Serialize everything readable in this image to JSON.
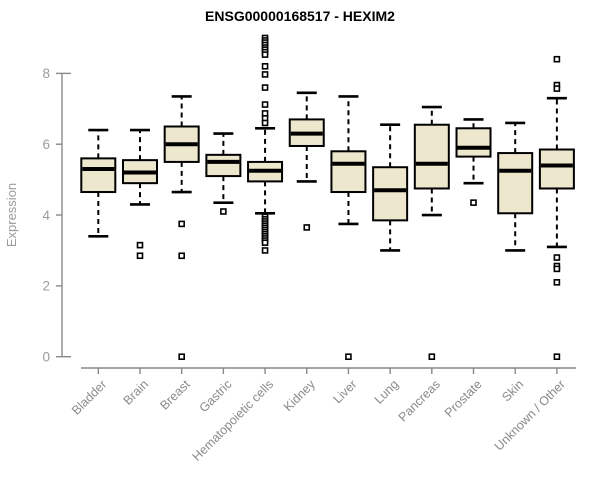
{
  "chart_data": {
    "type": "boxplot",
    "title": "ENSG00000168517 - HEXIM2",
    "xlabel": "",
    "ylabel": "Expression",
    "yticks": [
      0,
      2,
      4,
      6,
      8
    ],
    "ylim": [
      0,
      9.1
    ],
    "grid": false,
    "legend": false,
    "categories": [
      "Bladder",
      "Brain",
      "Breast",
      "Gastric",
      "Hematopoietic cells",
      "Kidney",
      "Liver",
      "Lung",
      "Pancreas",
      "Prostate",
      "Skin",
      "Unknown / Other"
    ],
    "series": [
      {
        "name": "Bladder",
        "whisker_low": 3.4,
        "q1": 4.65,
        "median": 5.3,
        "q3": 5.6,
        "whisker_high": 6.4,
        "outliers": []
      },
      {
        "name": "Brain",
        "whisker_low": 4.3,
        "q1": 4.9,
        "median": 5.2,
        "q3": 5.55,
        "whisker_high": 6.4,
        "outliers": [
          3.15,
          2.85
        ]
      },
      {
        "name": "Breast",
        "whisker_low": 4.65,
        "q1": 5.5,
        "median": 6.0,
        "q3": 6.5,
        "whisker_high": 7.35,
        "outliers": [
          3.75,
          2.85,
          0
        ]
      },
      {
        "name": "Gastric",
        "whisker_low": 4.35,
        "q1": 5.1,
        "median": 5.5,
        "q3": 5.7,
        "whisker_high": 6.3,
        "outliers": [
          4.1
        ]
      },
      {
        "name": "Hematopoietic cells",
        "whisker_low": 4.05,
        "q1": 4.95,
        "median": 5.25,
        "q3": 5.5,
        "whisker_high": 6.45,
        "outliers": [
          9.0,
          8.93,
          8.87,
          8.8,
          8.73,
          8.67,
          8.6,
          8.53,
          8.2,
          7.97,
          7.6,
          7.12,
          6.87,
          6.73,
          6.6,
          3.95,
          3.88,
          3.82,
          3.76,
          3.7,
          3.64,
          3.58,
          3.52,
          3.46,
          3.4,
          3.34,
          3.28,
          3.22,
          3.0
        ]
      },
      {
        "name": "Kidney",
        "whisker_low": 4.95,
        "q1": 5.95,
        "median": 6.3,
        "q3": 6.7,
        "whisker_high": 7.45,
        "outliers": [
          3.65
        ]
      },
      {
        "name": "Liver",
        "whisker_low": 3.75,
        "q1": 4.65,
        "median": 5.45,
        "q3": 5.8,
        "whisker_high": 7.35,
        "outliers": [
          0
        ]
      },
      {
        "name": "Lung",
        "whisker_low": 3.0,
        "q1": 3.85,
        "median": 4.7,
        "q3": 5.35,
        "whisker_high": 6.55,
        "outliers": []
      },
      {
        "name": "Pancreas",
        "whisker_low": 4.0,
        "q1": 4.75,
        "median": 5.45,
        "q3": 6.55,
        "whisker_high": 7.05,
        "outliers": [
          0
        ]
      },
      {
        "name": "Prostate",
        "whisker_low": 4.9,
        "q1": 5.65,
        "median": 5.9,
        "q3": 6.45,
        "whisker_high": 6.7,
        "outliers": [
          4.35
        ]
      },
      {
        "name": "Skin",
        "whisker_low": 3.0,
        "q1": 4.05,
        "median": 5.25,
        "q3": 5.75,
        "whisker_high": 6.6,
        "outliers": []
      },
      {
        "name": "Unknown / Other",
        "whisker_low": 3.1,
        "q1": 4.75,
        "median": 5.4,
        "q3": 5.85,
        "whisker_high": 7.3,
        "outliers": [
          8.4,
          7.67,
          7.57,
          2.8,
          2.56,
          2.48,
          2.1,
          0
        ]
      }
    ],
    "colors": {
      "box_fill": "#EDE7CE",
      "box_stroke": "#000000",
      "median": "#000000",
      "axis": "#888888",
      "tick_labels": "#9b9b9b",
      "x_labels": "#8a8a8a",
      "title": "#000000"
    }
  }
}
